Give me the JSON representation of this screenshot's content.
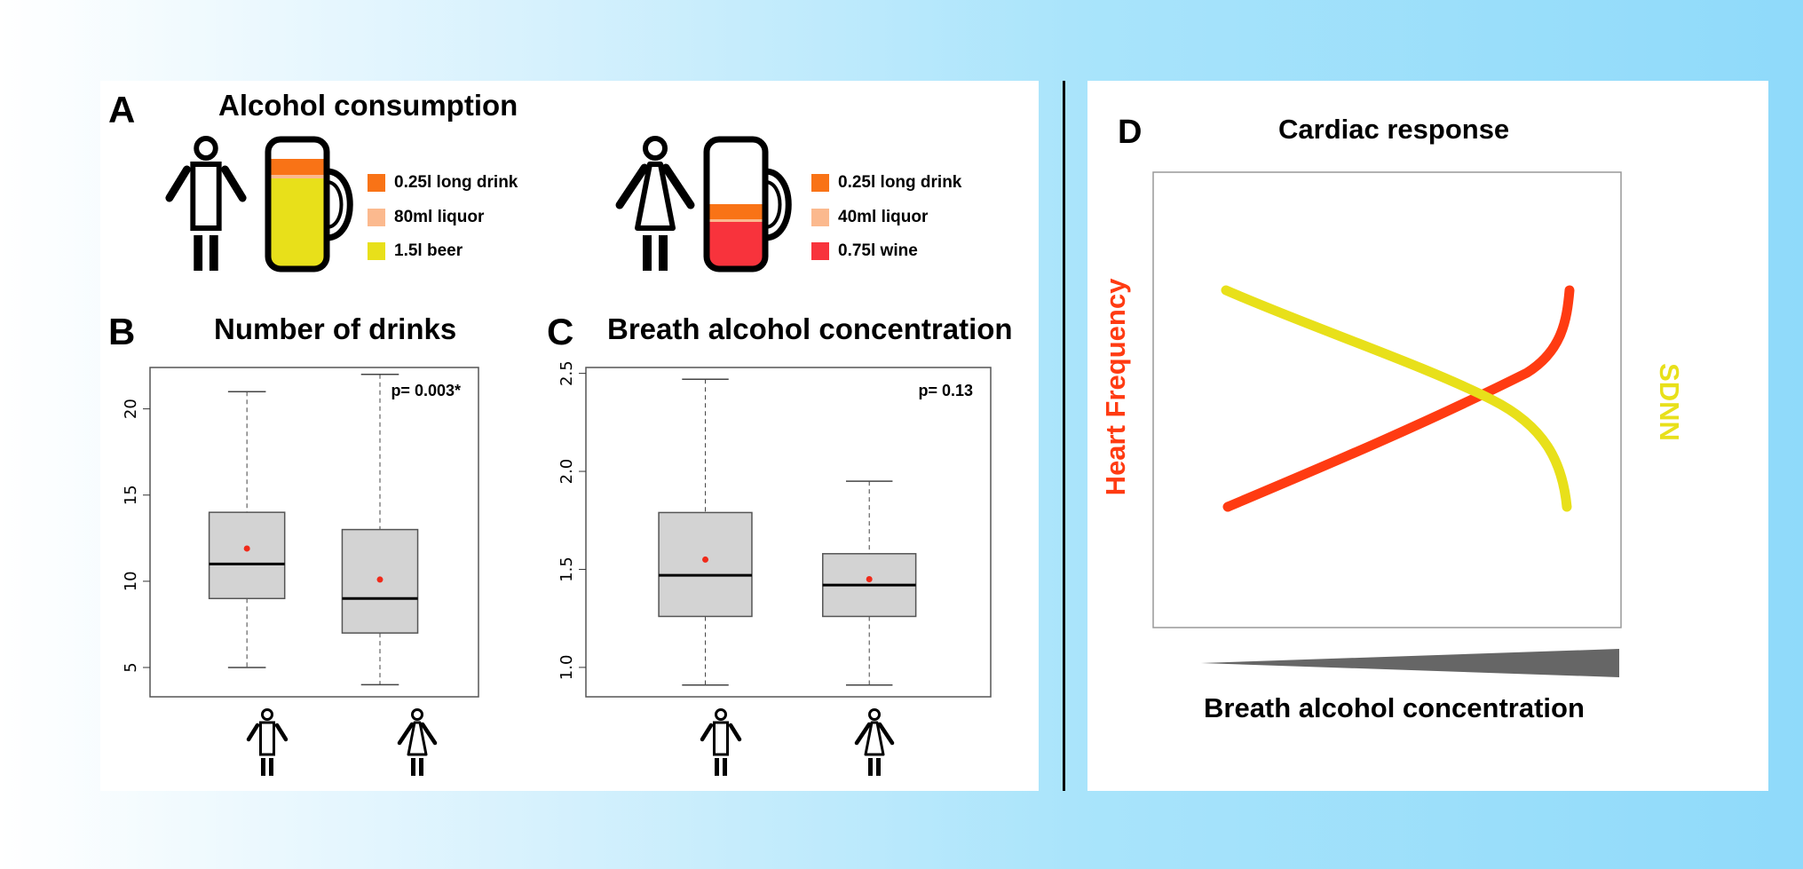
{
  "panel_a": {
    "letter": "A",
    "title": "Alcohol consumption",
    "male_legend": [
      {
        "label": "0.25l long drink",
        "color": "#f97316"
      },
      {
        "label": "80ml liquor",
        "color": "#fbb98e"
      },
      {
        "label": "1.5l beer",
        "color": "#e8e01a"
      }
    ],
    "female_legend": [
      {
        "label": "0.25l long drink",
        "color": "#f97316"
      },
      {
        "label": "40ml liquor",
        "color": "#fbb98e"
      },
      {
        "label": "0.75l wine",
        "color": "#f8333c"
      }
    ],
    "male_icon": "man-icon",
    "female_icon": "woman-icon",
    "mug_icon": "beer-mug-icon"
  },
  "panel_b": {
    "letter": "B",
    "title": "Number of drinks"
  },
  "panel_c": {
    "letter": "C",
    "title": "Breath alcohol concentration"
  },
  "panel_d": {
    "letter": "D",
    "title": "Cardiac response",
    "xlabel": "Breath alcohol concentration",
    "left_label": "Heart Frequency",
    "right_label": "SDNN",
    "colors": {
      "heart_frequency": "#ff3b12",
      "sdnn": "#e8e01a"
    }
  },
  "chart_data": [
    {
      "type": "box",
      "title": "Number of drinks",
      "categories": [
        "male",
        "female"
      ],
      "yticks": [
        5,
        10,
        15,
        20
      ],
      "ylim": [
        3.3,
        22.4
      ],
      "annotation": "p= 0.003*",
      "boxes": [
        {
          "min": 5,
          "q1": 9,
          "median": 11,
          "q3": 14,
          "max": 21,
          "mean": 11.9
        },
        {
          "min": 4,
          "q1": 7,
          "median": 9,
          "q3": 13,
          "max": 22,
          "mean": 10.1
        }
      ]
    },
    {
      "type": "box",
      "title": "Breath alcohol concentration",
      "categories": [
        "male",
        "female"
      ],
      "yticks": [
        "1.0",
        "1.5",
        "2.0",
        "2.5"
      ],
      "ylim": [
        0.85,
        2.53
      ],
      "annotation": "p= 0.13",
      "boxes": [
        {
          "min": 0.91,
          "q1": 1.26,
          "median": 1.47,
          "q3": 1.79,
          "max": 2.47,
          "mean": 1.55
        },
        {
          "min": 0.91,
          "q1": 1.26,
          "median": 1.42,
          "q3": 1.58,
          "max": 1.95,
          "mean": 1.45
        }
      ]
    }
  ]
}
